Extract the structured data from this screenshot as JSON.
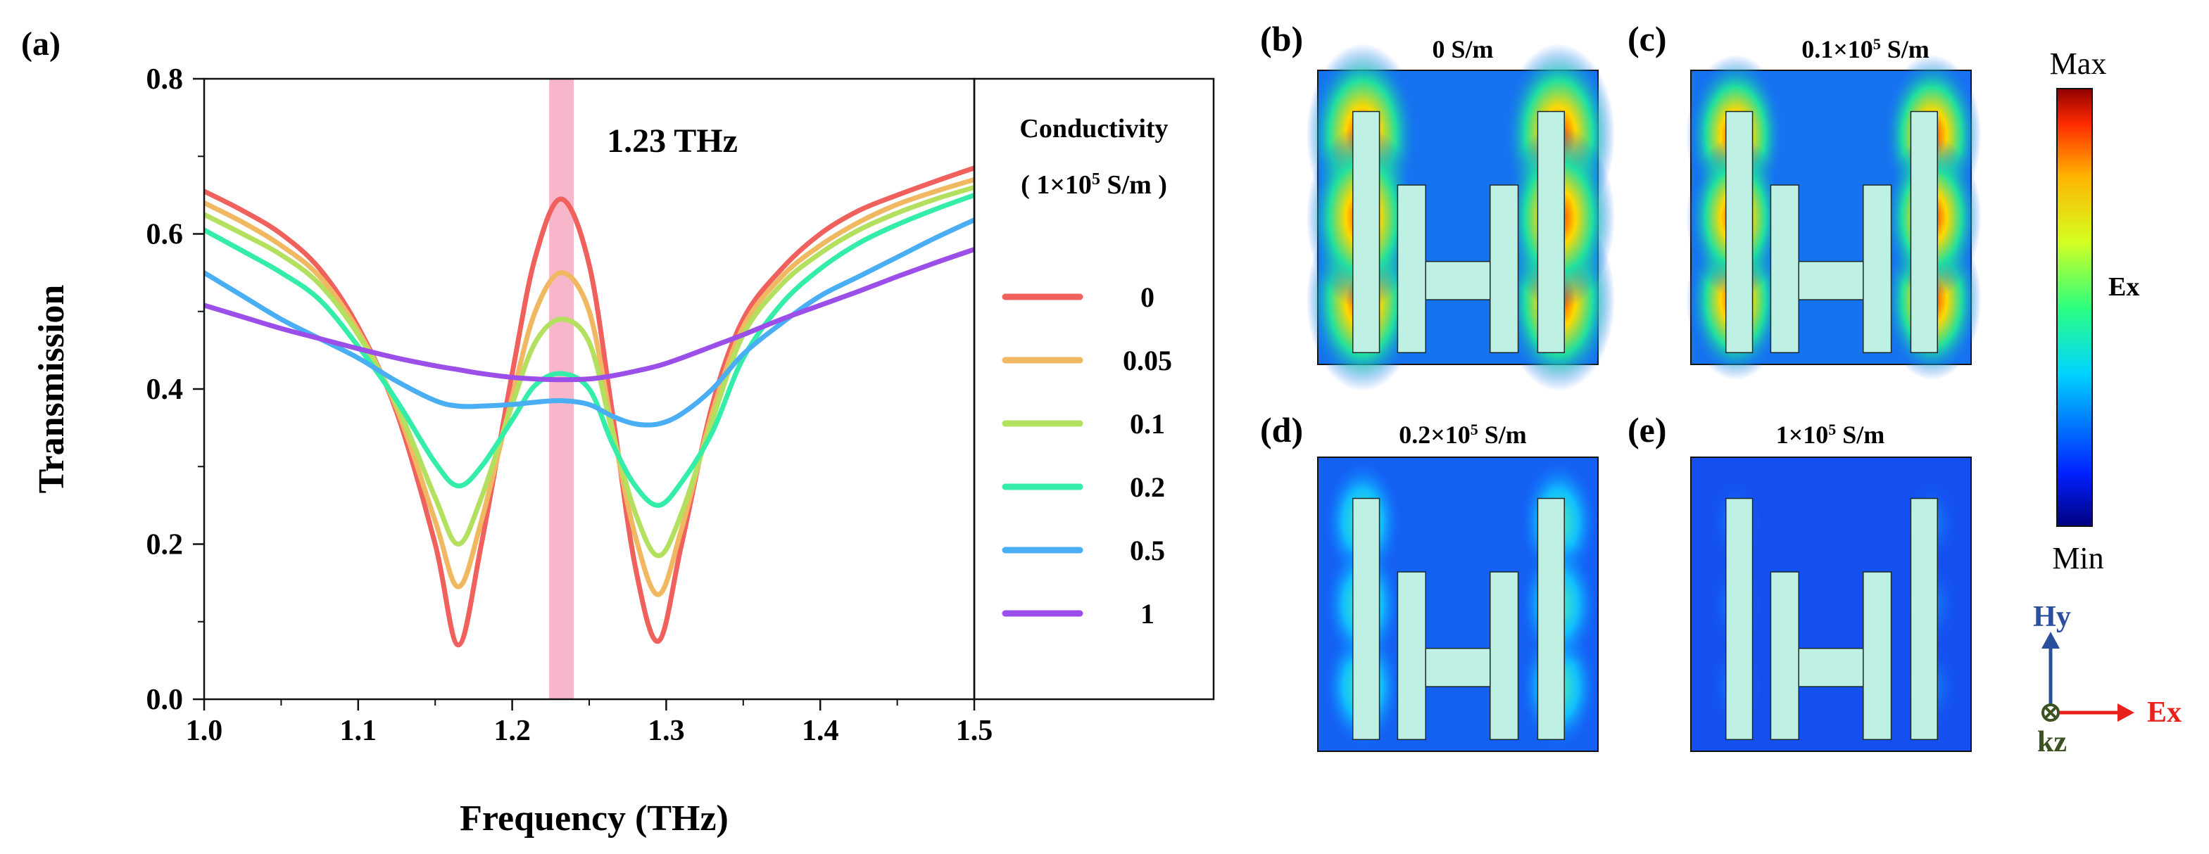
{
  "chart_data": {
    "type": "line",
    "panel_label": "(a)",
    "xlabel": "Frequency (THz)",
    "ylabel": "Transmission",
    "xlim": [
      1.0,
      1.5
    ],
    "ylim": [
      0.0,
      0.8
    ],
    "xticks": [
      "1.0",
      "1.1",
      "1.2",
      "1.3",
      "1.4",
      "1.5"
    ],
    "yticks": [
      "0.0",
      "0.2",
      "0.4",
      "0.6",
      "0.8"
    ],
    "grid": false,
    "highlight": {
      "x_from": 1.224,
      "x_to": 1.24,
      "color": "#f7b6c9"
    },
    "annotation": "1.23 THz",
    "legend": {
      "title": "Conductivity",
      "subtitle_prefix": "( 1×10",
      "subtitle_exp": "5",
      "subtitle_suffix": " S/m )",
      "placement": "right"
    },
    "x": [
      1.0,
      1.025,
      1.05,
      1.075,
      1.1,
      1.125,
      1.15,
      1.165,
      1.18,
      1.2,
      1.215,
      1.232,
      1.25,
      1.265,
      1.28,
      1.295,
      1.31,
      1.33,
      1.35,
      1.375,
      1.4,
      1.425,
      1.45,
      1.475,
      1.5
    ],
    "series": [
      {
        "name": "0",
        "color": "#f0605c",
        "values": [
          0.655,
          0.63,
          0.6,
          0.555,
          0.48,
          0.37,
          0.2,
          0.07,
          0.2,
          0.42,
          0.57,
          0.645,
          0.56,
          0.37,
          0.17,
          0.075,
          0.2,
          0.38,
          0.49,
          0.555,
          0.6,
          0.63,
          0.65,
          0.668,
          0.685
        ]
      },
      {
        "name": "0.05",
        "color": "#f0b860",
        "values": [
          0.64,
          0.615,
          0.585,
          0.545,
          0.475,
          0.375,
          0.23,
          0.145,
          0.23,
          0.39,
          0.5,
          0.55,
          0.5,
          0.35,
          0.21,
          0.135,
          0.22,
          0.37,
          0.48,
          0.545,
          0.585,
          0.615,
          0.638,
          0.655,
          0.67
        ]
      },
      {
        "name": "0.1",
        "color": "#b4e060",
        "values": [
          0.625,
          0.6,
          0.573,
          0.535,
          0.47,
          0.38,
          0.26,
          0.2,
          0.26,
          0.38,
          0.46,
          0.49,
          0.46,
          0.345,
          0.24,
          0.185,
          0.24,
          0.36,
          0.47,
          0.535,
          0.575,
          0.605,
          0.627,
          0.645,
          0.66
        ]
      },
      {
        "name": "0.2",
        "color": "#33eda8",
        "values": [
          0.605,
          0.578,
          0.55,
          0.515,
          0.455,
          0.385,
          0.305,
          0.275,
          0.3,
          0.36,
          0.405,
          0.42,
          0.4,
          0.33,
          0.275,
          0.25,
          0.28,
          0.345,
          0.44,
          0.51,
          0.555,
          0.588,
          0.612,
          0.632,
          0.65
        ]
      },
      {
        "name": "0.5",
        "color": "#4aaef5",
        "values": [
          0.55,
          0.52,
          0.49,
          0.465,
          0.44,
          0.41,
          0.385,
          0.378,
          0.378,
          0.38,
          0.383,
          0.385,
          0.38,
          0.365,
          0.355,
          0.355,
          0.368,
          0.4,
          0.445,
          0.485,
          0.52,
          0.545,
          0.57,
          0.595,
          0.618
        ]
      },
      {
        "name": "1",
        "color": "#9b4ee8",
        "values": [
          0.508,
          0.493,
          0.478,
          0.465,
          0.452,
          0.44,
          0.43,
          0.425,
          0.42,
          0.415,
          0.413,
          0.412,
          0.413,
          0.417,
          0.423,
          0.43,
          0.44,
          0.455,
          0.47,
          0.49,
          0.508,
          0.526,
          0.545,
          0.563,
          0.58
        ]
      }
    ]
  },
  "field_maps": {
    "panels": [
      {
        "label": "(b)",
        "title_main": "0 S/m",
        "title_exp": "",
        "title_tail": "",
        "intensity": 1.0
      },
      {
        "label": "(c)",
        "title_main": "0.1×10",
        "title_exp": "5",
        "title_tail": " S/m",
        "intensity": 0.8
      },
      {
        "label": "(d)",
        "title_main": "0.2×10",
        "title_exp": "5",
        "title_tail": " S/m",
        "intensity": 0.5
      },
      {
        "label": "(e)",
        "title_main": "1×10",
        "title_exp": "5",
        "title_tail": " S/m",
        "intensity": 0.15
      }
    ],
    "colorbar": {
      "max_label": "Max",
      "min_label": "Min",
      "quantity": "Ex"
    },
    "axes": {
      "y_label": "Hy",
      "x_label": "Ex",
      "z_label": "kz",
      "y_color": "#2a4f9c",
      "x_color": "#e8211c",
      "z_color": "#3b5320"
    }
  }
}
